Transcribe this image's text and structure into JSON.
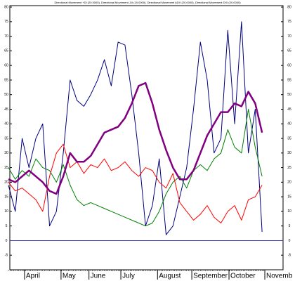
{
  "chart_data": {
    "type": "line",
    "title": "Directional Movement +DI (20.0000), Directional Movement -DI (10.0000), Directional Movement ADX (20.0000), Directional Movement DXI (20.0000)",
    "x": [
      0,
      4,
      8,
      12,
      16,
      20,
      24,
      28,
      32,
      36,
      40,
      44,
      48,
      52,
      56,
      60,
      64,
      68,
      72,
      76,
      80,
      84,
      88,
      92,
      96,
      100,
      104,
      108,
      112,
      116,
      120,
      124,
      128,
      132,
      136,
      140,
      144,
      148
    ],
    "series": [
      {
        "name": "DX",
        "color": "#000080",
        "width": 1,
        "values": [
          19,
          10,
          35,
          25,
          35,
          40,
          5,
          10,
          30,
          55,
          48,
          46,
          50,
          55,
          62,
          53,
          68,
          67,
          50,
          30,
          5,
          12,
          28,
          2,
          5,
          15,
          25,
          45,
          68,
          55,
          30,
          35,
          72,
          40,
          75,
          30,
          45,
          3
        ]
      },
      {
        "name": "+DI",
        "color": "#008000",
        "width": 1,
        "values": [
          25,
          21,
          24,
          22,
          28,
          25,
          24,
          20,
          26,
          19,
          14,
          12,
          13,
          12,
          11,
          10,
          9,
          8,
          7,
          6,
          5,
          6,
          10,
          16,
          20,
          22,
          18,
          24,
          26,
          24,
          28,
          30,
          38,
          32,
          30,
          45,
          32,
          22
        ]
      },
      {
        "name": "-DI",
        "color": "#ff0000",
        "width": 1,
        "values": [
          20,
          17,
          18,
          16,
          14,
          10,
          22,
          30,
          33,
          25,
          27,
          23,
          26,
          25,
          28,
          24,
          25,
          27,
          24,
          22,
          25,
          24,
          20,
          18,
          23,
          13,
          10,
          7,
          9,
          12,
          8,
          6,
          10,
          12,
          7,
          14,
          15,
          19
        ]
      },
      {
        "name": "ADX",
        "color": "#800080",
        "width": 2.5,
        "values": [
          21,
          20,
          22,
          24,
          22,
          20,
          17,
          16,
          22,
          30,
          27,
          27,
          29,
          33,
          37,
          38,
          39,
          42,
          47,
          53,
          54,
          47,
          38,
          31,
          25,
          21,
          21,
          24,
          30,
          36,
          40,
          44,
          44,
          47,
          46,
          51,
          47,
          37
        ]
      }
    ],
    "xlim": [
      0,
      150
    ],
    "xticks": [
      {
        "value": 9.4,
        "label": "April"
      },
      {
        "value": 30.7,
        "label": "May"
      },
      {
        "value": 47,
        "label": "June"
      },
      {
        "value": 65.6,
        "label": "July"
      },
      {
        "value": 87,
        "label": "August"
      },
      {
        "value": 107,
        "label": "September"
      },
      {
        "value": 128.7,
        "label": "October"
      },
      {
        "value": 149.6,
        "label": "Novemb"
      }
    ],
    "ylim": [
      -10,
      80.5
    ],
    "yticks": [
      -5,
      0,
      5,
      10,
      15,
      20,
      25,
      30,
      35,
      40,
      45,
      50,
      55,
      60,
      65,
      70,
      75,
      80
    ],
    "zero_line_color": "#4040c0"
  }
}
